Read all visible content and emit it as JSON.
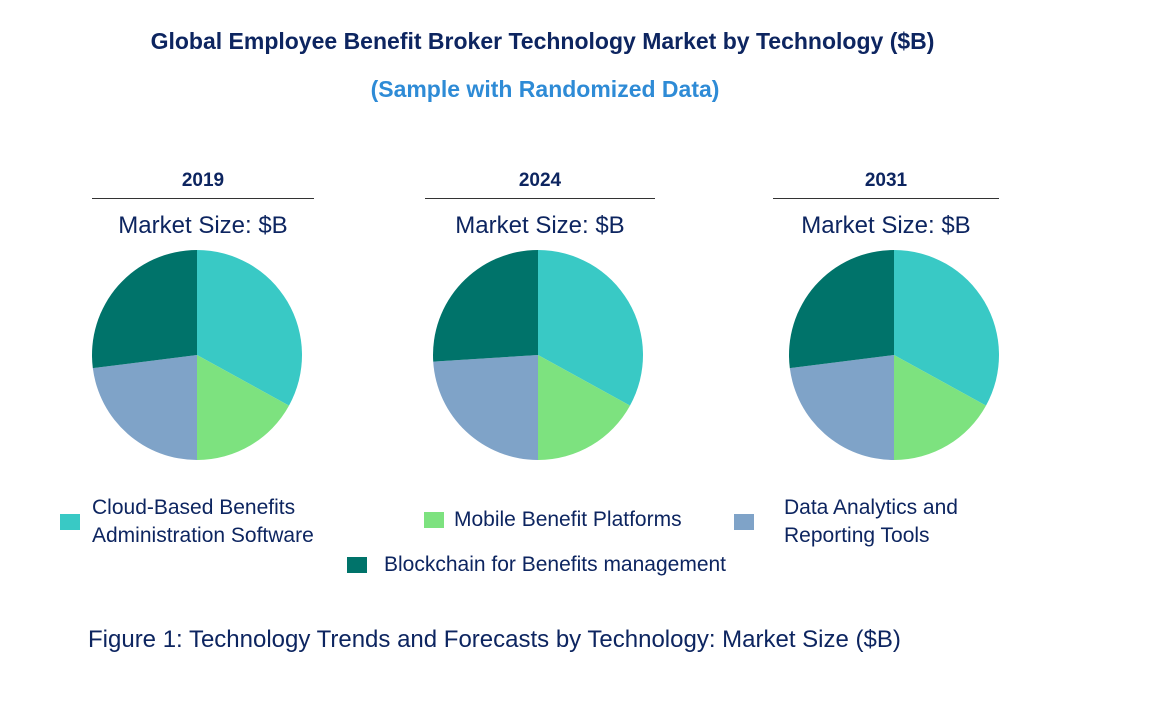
{
  "title": "Global Employee Benefit Broker Technology Market by Technology ($B)",
  "subtitle": "(Sample with Randomized Data)",
  "caption": "Figure 1: Technology Trends and Forecasts by Technology: Market Size ($B)",
  "colors": {
    "cloud": "#39c9c5",
    "mobile": "#7de27f",
    "analytics": "#7fa3c8",
    "blockchain": "#00736a"
  },
  "chart_data": [
    {
      "type": "pie",
      "title": "2019",
      "subtitle": "Market Size: $B",
      "labels": [
        "Cloud-Based Benefits Administration Software",
        "Mobile Benefit Platforms",
        "Data Analytics and Reporting Tools",
        "Blockchain for Benefits management"
      ],
      "values": [
        33,
        17,
        23,
        27
      ]
    },
    {
      "type": "pie",
      "title": "2024",
      "subtitle": "Market Size: $B",
      "labels": [
        "Cloud-Based Benefits Administration Software",
        "Mobile Benefit Platforms",
        "Data Analytics and Reporting Tools",
        "Blockchain for Benefits management"
      ],
      "values": [
        33,
        17,
        24,
        26
      ]
    },
    {
      "type": "pie",
      "title": "2031",
      "subtitle": "Market Size: $B",
      "labels": [
        "Cloud-Based Benefits Administration Software",
        "Mobile Benefit Platforms",
        "Data Analytics and Reporting Tools",
        "Blockchain for Benefits management"
      ],
      "values": [
        33,
        17,
        23,
        27
      ]
    }
  ],
  "legend": [
    {
      "label_line1": "Cloud-Based Benefits",
      "label_line2": "Administration Software"
    },
    {
      "label_line1": "Mobile Benefit Platforms",
      "label_line2": ""
    },
    {
      "label_line1": "Data Analytics and",
      "label_line2": "Reporting Tools"
    },
    {
      "label_line1": "Blockchain for Benefits management",
      "label_line2": ""
    }
  ]
}
